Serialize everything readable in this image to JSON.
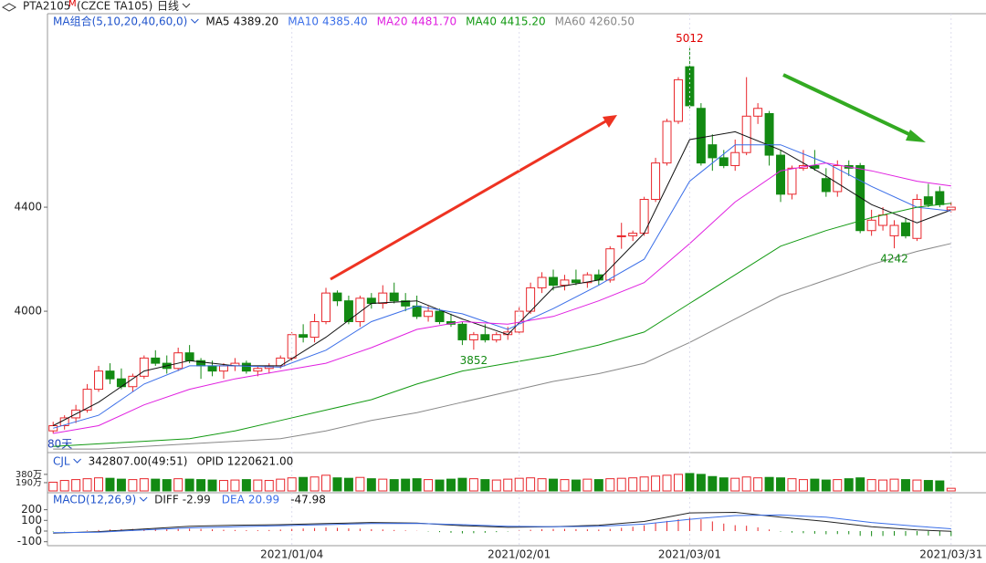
{
  "header": {
    "symbol": "PTA2105",
    "flag": "M",
    "code": "(CZCE TA105)",
    "period": "日线"
  },
  "chart_data": [
    {
      "type": "candlestick",
      "title": "MA组合(5,10,20,40,60,0)",
      "corner_label": "80天",
      "up_color": "#e8262b",
      "down_color": "#138a13",
      "ylim": [
        3460,
        5144
      ],
      "yticks": [
        4000,
        4400
      ],
      "xlim": [
        -0.5,
        79.5
      ],
      "xticks": [
        {
          "value": 21,
          "label": "2021/01/04"
        },
        {
          "value": 41,
          "label": "2021/02/01"
        },
        {
          "value": 56,
          "label": "2021/03/01"
        },
        {
          "value": 79,
          "label": "2021/03/31"
        }
      ],
      "ohlc": [
        [
          3540,
          3575,
          3530,
          3560
        ],
        [
          3560,
          3600,
          3545,
          3590
        ],
        [
          3590,
          3640,
          3570,
          3620
        ],
        [
          3620,
          3720,
          3610,
          3700
        ],
        [
          3700,
          3790,
          3690,
          3770
        ],
        [
          3770,
          3800,
          3720,
          3740
        ],
        [
          3740,
          3780,
          3700,
          3710
        ],
        [
          3710,
          3760,
          3690,
          3750
        ],
        [
          3750,
          3830,
          3740,
          3820
        ],
        [
          3820,
          3850,
          3790,
          3800
        ],
        [
          3800,
          3830,
          3760,
          3780
        ],
        [
          3780,
          3860,
          3770,
          3840
        ],
        [
          3840,
          3870,
          3800,
          3810
        ],
        [
          3810,
          3820,
          3740,
          3790
        ],
        [
          3790,
          3810,
          3750,
          3770
        ],
        [
          3770,
          3800,
          3740,
          3790
        ],
        [
          3790,
          3820,
          3770,
          3800
        ],
        [
          3800,
          3810,
          3760,
          3770
        ],
        [
          3770,
          3790,
          3750,
          3780
        ],
        [
          3780,
          3800,
          3760,
          3790
        ],
        [
          3790,
          3830,
          3780,
          3820
        ],
        [
          3820,
          3920,
          3810,
          3910
        ],
        [
          3910,
          3950,
          3880,
          3900
        ],
        [
          3900,
          3990,
          3880,
          3960
        ],
        [
          3960,
          4090,
          3950,
          4070
        ],
        [
          4070,
          4080,
          4020,
          4040
        ],
        [
          4040,
          4060,
          3950,
          3960
        ],
        [
          3960,
          4060,
          3940,
          4050
        ],
        [
          4050,
          4070,
          4010,
          4030
        ],
        [
          4030,
          4100,
          4010,
          4070
        ],
        [
          4070,
          4110,
          4030,
          4040
        ],
        [
          4040,
          4070,
          4000,
          4020
        ],
        [
          4020,
          4060,
          3970,
          3980
        ],
        [
          3980,
          4020,
          3960,
          4000
        ],
        [
          4000,
          4010,
          3950,
          3960
        ],
        [
          3960,
          3990,
          3940,
          3950
        ],
        [
          3950,
          3960,
          3870,
          3890
        ],
        [
          3890,
          3920,
          3852,
          3910
        ],
        [
          3910,
          3950,
          3880,
          3890
        ],
        [
          3890,
          3920,
          3880,
          3910
        ],
        [
          3910,
          3940,
          3890,
          3920
        ],
        [
          3920,
          4020,
          3910,
          4000
        ],
        [
          4000,
          4110,
          3990,
          4090
        ],
        [
          4090,
          4150,
          4070,
          4130
        ],
        [
          4130,
          4160,
          4080,
          4100
        ],
        [
          4100,
          4140,
          4080,
          4120
        ],
        [
          4120,
          4160,
          4100,
          4110
        ],
        [
          4110,
          4150,
          4090,
          4140
        ],
        [
          4140,
          4160,
          4100,
          4120
        ],
        [
          4120,
          4250,
          4110,
          4240
        ],
        [
          4290,
          4340,
          4240,
          4290
        ],
        [
          4290,
          4310,
          4270,
          4300
        ],
        [
          4300,
          4440,
          4290,
          4430
        ],
        [
          4430,
          4590,
          4420,
          4570
        ],
        [
          4570,
          4740,
          4560,
          4730
        ],
        [
          4730,
          4900,
          4720,
          4890
        ],
        [
          4940,
          5012,
          4780,
          4790
        ],
        [
          4780,
          4800,
          4560,
          4570
        ],
        [
          4640,
          4680,
          4540,
          4590
        ],
        [
          4590,
          4620,
          4550,
          4560
        ],
        [
          4560,
          4660,
          4540,
          4610
        ],
        [
          4610,
          4900,
          4600,
          4750
        ],
        [
          4750,
          4800,
          4720,
          4780
        ],
        [
          4760,
          4770,
          4560,
          4600
        ],
        [
          4600,
          4620,
          4420,
          4450
        ],
        [
          4450,
          4560,
          4430,
          4550
        ],
        [
          4550,
          4620,
          4540,
          4560
        ],
        [
          4560,
          4620,
          4540,
          4550
        ],
        [
          4510,
          4550,
          4440,
          4460
        ],
        [
          4460,
          4580,
          4440,
          4560
        ],
        [
          4560,
          4580,
          4520,
          4550
        ],
        [
          4560,
          4570,
          4300,
          4310
        ],
        [
          4310,
          4390,
          4290,
          4350
        ],
        [
          4330,
          4400,
          4310,
          4370
        ],
        [
          4290,
          4350,
          4242,
          4330
        ],
        [
          4340,
          4360,
          4280,
          4290
        ],
        [
          4280,
          4450,
          4270,
          4430
        ],
        [
          4440,
          4490,
          4400,
          4410
        ],
        [
          4460,
          4480,
          4400,
          4410
        ],
        [
          4390,
          4420,
          4380,
          4400
        ]
      ],
      "annotations": [
        {
          "x": 56,
          "value": 5012,
          "color": "#e00000"
        },
        {
          "x": 37,
          "value": 3852,
          "color": "#138a13"
        },
        {
          "x": 74,
          "value": 4242,
          "color": "#138a13"
        }
      ],
      "series": [
        {
          "name": "MA5",
          "color": "#111111",
          "value_label": "4389.20",
          "x": [
            0,
            4,
            8,
            12,
            16,
            20,
            24,
            28,
            32,
            36,
            40,
            44,
            48,
            52,
            56,
            60,
            64,
            68,
            72,
            76,
            79
          ],
          "values": [
            3560,
            3650,
            3770,
            3810,
            3790,
            3790,
            3900,
            4030,
            4040,
            3970,
            3910,
            4090,
            4120,
            4300,
            4660,
            4690,
            4620,
            4520,
            4410,
            4340,
            4389.2
          ]
        },
        {
          "name": "MA10",
          "color": "#3a6ee8",
          "value_label": "4385.40",
          "x": [
            0,
            4,
            8,
            12,
            16,
            20,
            24,
            28,
            32,
            36,
            40,
            44,
            48,
            52,
            56,
            60,
            64,
            68,
            72,
            76,
            79
          ],
          "values": [
            3550,
            3600,
            3720,
            3790,
            3790,
            3785,
            3850,
            3960,
            4020,
            3990,
            3930,
            4010,
            4100,
            4200,
            4500,
            4640,
            4640,
            4570,
            4480,
            4400,
            4385.4
          ]
        },
        {
          "name": "MA20",
          "color": "#e020e0",
          "value_label": "4481.70",
          "x": [
            0,
            4,
            8,
            12,
            16,
            20,
            24,
            28,
            32,
            36,
            40,
            44,
            48,
            52,
            56,
            60,
            64,
            68,
            72,
            76,
            79
          ],
          "values": [
            3530,
            3560,
            3640,
            3700,
            3740,
            3770,
            3800,
            3860,
            3930,
            3960,
            3950,
            3980,
            4040,
            4110,
            4260,
            4420,
            4540,
            4570,
            4540,
            4500,
            4481.7
          ]
        },
        {
          "name": "MA40",
          "color": "#119911",
          "value_label": "4415.20",
          "x": [
            0,
            4,
            8,
            12,
            16,
            20,
            24,
            28,
            32,
            36,
            40,
            44,
            48,
            52,
            56,
            60,
            64,
            68,
            72,
            76,
            79
          ],
          "values": [
            3480,
            3490,
            3500,
            3510,
            3540,
            3580,
            3620,
            3660,
            3720,
            3770,
            3800,
            3830,
            3870,
            3920,
            4030,
            4140,
            4250,
            4310,
            4360,
            4400,
            4415.2
          ]
        },
        {
          "name": "MA60",
          "color": "#888888",
          "value_label": "4260.50",
          "x": [
            0,
            4,
            8,
            12,
            16,
            20,
            24,
            28,
            32,
            36,
            40,
            44,
            48,
            52,
            56,
            60,
            64,
            68,
            72,
            76,
            79
          ],
          "values": [
            3470,
            3470,
            3480,
            3490,
            3500,
            3510,
            3540,
            3580,
            3610,
            3650,
            3690,
            3730,
            3760,
            3800,
            3880,
            3970,
            4060,
            4120,
            4180,
            4230,
            4260.5
          ]
        }
      ]
    },
    {
      "type": "volume",
      "title": "CJL",
      "stats": [
        "342807.00(49:51)",
        "OPID 1220621.00"
      ],
      "ylim": [
        0,
        545
      ],
      "yticks": [
        {
          "value": 380,
          "label": "380万"
        },
        {
          "value": 190,
          "label": "190万"
        }
      ],
      "values": [
        200,
        240,
        260,
        280,
        300,
        290,
        270,
        260,
        280,
        270,
        260,
        280,
        270,
        260,
        250,
        240,
        250,
        260,
        250,
        240,
        270,
        300,
        310,
        320,
        360,
        300,
        290,
        310,
        280,
        270,
        260,
        270,
        280,
        260,
        250,
        270,
        290,
        280,
        260,
        250,
        270,
        290,
        300,
        280,
        270,
        260,
        250,
        270,
        260,
        280,
        290,
        300,
        320,
        340,
        360,
        380,
        400,
        380,
        330,
        300,
        290,
        320,
        300,
        310,
        300,
        280,
        260,
        270,
        250,
        260,
        280,
        300,
        260,
        250,
        270,
        260,
        250,
        240,
        230,
        60
      ]
    },
    {
      "type": "macd",
      "title": "MACD(12,26,9)",
      "ylim": [
        -154,
        265
      ],
      "yticks": [
        200,
        100,
        0,
        -100
      ],
      "up_color": "#e8262b",
      "down_color": "#138a13",
      "histogram": [
        -5,
        -3,
        0,
        5,
        10,
        15,
        18,
        20,
        22,
        20,
        18,
        20,
        22,
        20,
        16,
        12,
        10,
        8,
        8,
        10,
        14,
        20,
        24,
        28,
        34,
        30,
        25,
        22,
        18,
        15,
        10,
        6,
        2,
        -4,
        -10,
        -16,
        -22,
        -20,
        -16,
        -10,
        -4,
        4,
        12,
        18,
        20,
        20,
        18,
        16,
        14,
        20,
        30,
        40,
        55,
        75,
        95,
        110,
        125,
        110,
        90,
        70,
        55,
        50,
        35,
        15,
        -5,
        -15,
        -20,
        -25,
        -30,
        -28,
        -30,
        -45,
        -48,
        -46,
        -44,
        -45,
        -40,
        -42,
        -45,
        -47.98
      ],
      "series": [
        {
          "name": "DIFF",
          "color": "#222222",
          "x": [
            0,
            4,
            8,
            12,
            16,
            20,
            24,
            28,
            32,
            36,
            40,
            44,
            48,
            52,
            56,
            60,
            64,
            68,
            72,
            76,
            79
          ],
          "values": [
            -20,
            -5,
            20,
            45,
            55,
            60,
            70,
            80,
            75,
            50,
            35,
            40,
            55,
            90,
            170,
            175,
            130,
            90,
            40,
            10,
            -2.99
          ]
        },
        {
          "name": "DEA",
          "color": "#3a6ee8",
          "x": [
            0,
            4,
            8,
            12,
            16,
            20,
            24,
            28,
            32,
            36,
            40,
            44,
            48,
            52,
            56,
            60,
            64,
            68,
            72,
            76,
            79
          ],
          "values": [
            -15,
            -10,
            10,
            30,
            40,
            50,
            60,
            70,
            72,
            60,
            45,
            40,
            45,
            65,
            110,
            145,
            150,
            130,
            80,
            45,
            20.99
          ]
        }
      ]
    }
  ]
}
